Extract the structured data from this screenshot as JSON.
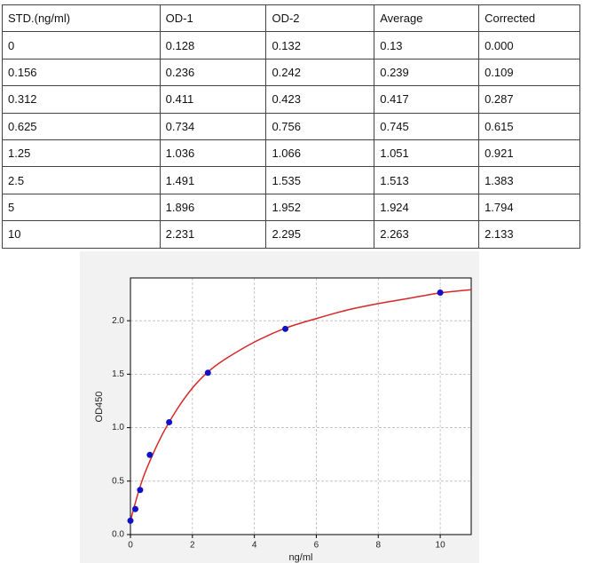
{
  "table": {
    "header": [
      "STD.(ng/ml)",
      "OD-1",
      "OD-2",
      "Average",
      "Corrected"
    ],
    "rows": [
      [
        "0",
        "0.128",
        "0.132",
        "0.13",
        "0.000"
      ],
      [
        "0.156",
        "0.236",
        "0.242",
        "0.239",
        "0.109"
      ],
      [
        "0.312",
        "0.411",
        "0.423",
        "0.417",
        "0.287"
      ],
      [
        "0.625",
        "0.734",
        "0.756",
        "0.745",
        "0.615"
      ],
      [
        "1.25",
        "1.036",
        "1.066",
        "1.051",
        "0.921"
      ],
      [
        "2.5",
        "1.491",
        "1.535",
        "1.513",
        "1.383"
      ],
      [
        "5",
        "1.896",
        "1.952",
        "1.924",
        "1.794"
      ],
      [
        "10",
        "2.231",
        "2.295",
        "2.263",
        "2.133"
      ]
    ]
  },
  "chart_data": {
    "type": "scatter",
    "xlabel": "ng/ml",
    "ylabel": "OD450",
    "xlim": [
      0,
      11
    ],
    "ylim": [
      0,
      2.4
    ],
    "xticks": [
      0,
      2,
      4,
      6,
      8,
      10
    ],
    "yticks": [
      {
        "value": 0,
        "label": "0.0"
      },
      0.5,
      {
        "value": 1,
        "label": "1.0"
      },
      1.5,
      {
        "value": 2,
        "label": "2.0"
      }
    ],
    "grid": true,
    "series": [
      {
        "mark": "point",
        "color": "#1010c8",
        "x": [
          0,
          0.156,
          0.312,
          0.625,
          1.25,
          2.5,
          5,
          10
        ],
        "values": [
          0.13,
          0.239,
          0.417,
          0.745,
          1.051,
          1.513,
          1.924,
          2.263
        ]
      },
      {
        "mark": "line",
        "color": "#d62728",
        "x": [
          0,
          0.25,
          0.5,
          1,
          1.5,
          2,
          2.5,
          3,
          4,
          5,
          6,
          7,
          8,
          9,
          10,
          11
        ],
        "values": [
          0.13,
          0.39,
          0.6,
          0.92,
          1.17,
          1.37,
          1.52,
          1.63,
          1.8,
          1.93,
          2.02,
          2.1,
          2.16,
          2.21,
          2.26,
          2.29
        ]
      }
    ]
  }
}
